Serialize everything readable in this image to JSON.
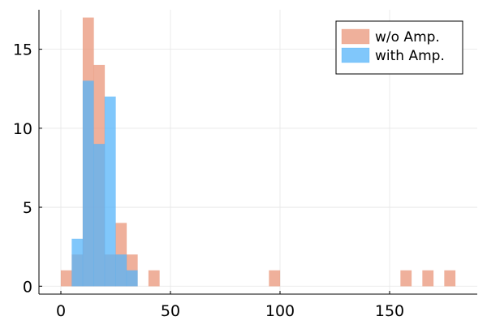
{
  "chart_data": {
    "type": "bar",
    "bin_width": 5,
    "xlim": [
      -10,
      190
    ],
    "ylim": [
      -0.5,
      17.5
    ],
    "x_ticks": [
      0,
      50,
      100,
      150
    ],
    "y_ticks": [
      0,
      5,
      10,
      15
    ],
    "x_tick_labels": [
      "0",
      "50",
      "100",
      "150"
    ],
    "y_tick_labels": [
      "0",
      "5",
      "10",
      "15"
    ],
    "grid": true,
    "legend_position": "top-right",
    "series": [
      {
        "name": "w/o Amp.",
        "color": "#e9967a",
        "bin_starts": [
          0,
          5,
          10,
          15,
          20,
          25,
          30,
          40,
          95,
          155,
          165,
          175
        ],
        "counts": [
          1,
          2,
          17,
          14,
          2,
          4,
          2,
          1,
          1,
          1,
          1,
          1
        ]
      },
      {
        "name": "with Amp.",
        "color": "#56b4f9",
        "bin_starts": [
          5,
          10,
          15,
          20,
          25,
          30
        ],
        "counts": [
          3,
          13,
          9,
          12,
          2,
          1
        ]
      }
    ]
  }
}
